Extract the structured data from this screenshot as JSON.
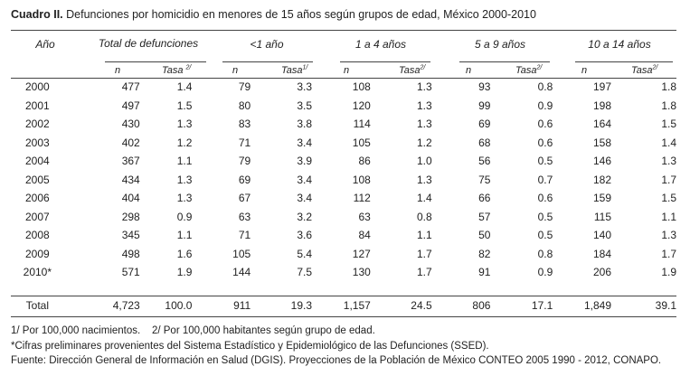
{
  "title": {
    "label": "Cuadro II.",
    "text": "Defunciones por homicidio en menores de 15 años según grupos de edad, México 2000-2010"
  },
  "headers": {
    "year": "Año",
    "groups": [
      "Total de defunciones",
      "<1 año",
      "1 a 4 años",
      "5 a 9 años",
      "10 a 14 años"
    ],
    "n": "n",
    "rate": "Tasa",
    "rate_refs": [
      "2/",
      "1/",
      "2/",
      "2/",
      "2/"
    ]
  },
  "rows": [
    [
      "2000",
      "477",
      "1.4",
      "79",
      "3.3",
      "108",
      "1.3",
      "93",
      "0.8",
      "197",
      "1.8"
    ],
    [
      "2001",
      "497",
      "1.5",
      "80",
      "3.5",
      "120",
      "1.3",
      "99",
      "0.9",
      "198",
      "1.8"
    ],
    [
      "2002",
      "430",
      "1.3",
      "83",
      "3.8",
      "114",
      "1.3",
      "69",
      "0.6",
      "164",
      "1.5"
    ],
    [
      "2003",
      "402",
      "1.2",
      "71",
      "3.4",
      "105",
      "1.2",
      "68",
      "0.6",
      "158",
      "1.4"
    ],
    [
      "2004",
      "367",
      "1.1",
      "79",
      "3.9",
      "86",
      "1.0",
      "56",
      "0.5",
      "146",
      "1.3"
    ],
    [
      "2005",
      "434",
      "1.3",
      "69",
      "3.4",
      "108",
      "1.3",
      "75",
      "0.7",
      "182",
      "1.7"
    ],
    [
      "2006",
      "404",
      "1.3",
      "67",
      "3.4",
      "112",
      "1.4",
      "66",
      "0.6",
      "159",
      "1.5"
    ],
    [
      "2007",
      "298",
      "0.9",
      "63",
      "3.2",
      "63",
      "0.8",
      "57",
      "0.5",
      "115",
      "1.1"
    ],
    [
      "2008",
      "345",
      "1.1",
      "71",
      "3.6",
      "84",
      "1.1",
      "50",
      "0.5",
      "140",
      "1.3"
    ],
    [
      "2009",
      "498",
      "1.6",
      "105",
      "5.4",
      "127",
      "1.7",
      "82",
      "0.8",
      "184",
      "1.7"
    ],
    [
      "2010*",
      "571",
      "1.9",
      "144",
      "7.5",
      "130",
      "1.7",
      "91",
      "0.9",
      "206",
      "1.9"
    ]
  ],
  "total": [
    "Total",
    "4,723",
    "100.0",
    "911",
    "19.3",
    "1,157",
    "24.5",
    "806",
    "17.1",
    "1,849",
    "39.1"
  ],
  "notes": {
    "line1": "1/ Por 100,000 nacimientos.    2/ Por 100,000 habitantes según grupo de edad.",
    "line2": "*Cifras preliminares provenientes del Sistema Estadístico y Epidemiológico de las Defunciones (SSED).",
    "line3": "Fuente: Dirección General de Información en Salud (DGIS). Proyecciones de la Población de México CONTEO 2005 1990 - 2012, CONAPO."
  }
}
